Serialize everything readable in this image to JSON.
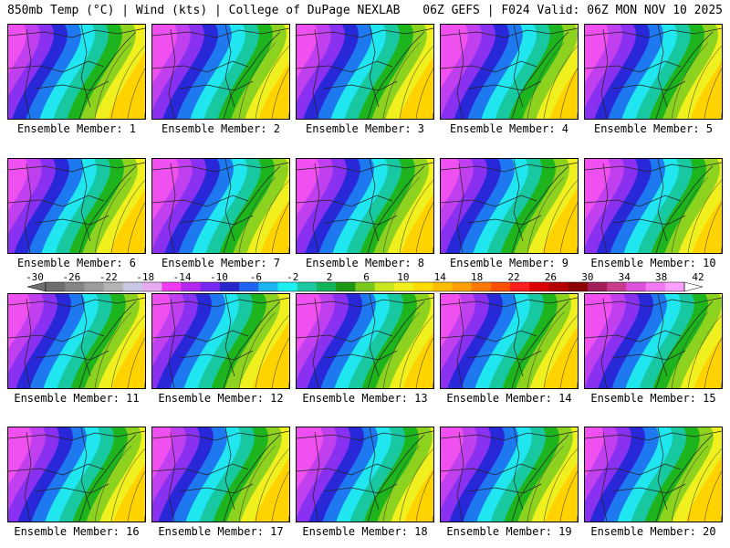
{
  "header": {
    "left": "850mb Temp (°C) | Wind (kts) | College of DuPage NEXLAB",
    "right": "06Z GEFS | F024 Valid: 06Z MON NOV 10 2025"
  },
  "panels": [
    {
      "label": "Ensemble Member: 1"
    },
    {
      "label": "Ensemble Member: 2"
    },
    {
      "label": "Ensemble Member: 3"
    },
    {
      "label": "Ensemble Member: 4"
    },
    {
      "label": "Ensemble Member: 5"
    },
    {
      "label": "Ensemble Member: 6"
    },
    {
      "label": "Ensemble Member: 7"
    },
    {
      "label": "Ensemble Member: 8"
    },
    {
      "label": "Ensemble Member: 9"
    },
    {
      "label": "Ensemble Member: 10"
    },
    {
      "label": "Ensemble Member: 11"
    },
    {
      "label": "Ensemble Member: 12"
    },
    {
      "label": "Ensemble Member: 13"
    },
    {
      "label": "Ensemble Member: 14"
    },
    {
      "label": "Ensemble Member: 15"
    },
    {
      "label": "Ensemble Member: 16"
    },
    {
      "label": "Ensemble Member: 17"
    },
    {
      "label": "Ensemble Member: 18"
    },
    {
      "label": "Ensemble Member: 19"
    },
    {
      "label": "Ensemble Member: 20"
    }
  ],
  "colorbar": {
    "labels": [
      "-30",
      "-26",
      "-22",
      "-18",
      "-14",
      "-10",
      "-6",
      "-2",
      "2",
      "6",
      "10",
      "14",
      "18",
      "22",
      "26",
      "30",
      "34",
      "38",
      "42"
    ],
    "colors": [
      "#6e6e6e",
      "#858585",
      "#9c9c9c",
      "#b4b4b4",
      "#c8c8e6",
      "#e6aaf0",
      "#f03cf0",
      "#b428f0",
      "#7828f0",
      "#2828c8",
      "#1e64f0",
      "#1eb4f0",
      "#1ef0f0",
      "#1ec8a0",
      "#14b45a",
      "#1e9614",
      "#78c81e",
      "#c8e61e",
      "#f0f01e",
      "#ffdc00",
      "#ffbe00",
      "#ffa000",
      "#ff7800",
      "#ff5000",
      "#ff1e1e",
      "#dc0000",
      "#b40000",
      "#8c0000",
      "#a01e5a",
      "#c83c8c",
      "#dc50dc",
      "#f078f0",
      "#ffa0ff"
    ],
    "end_color": "#ffffff"
  },
  "map_colors": {
    "purple_light": "#f050f0",
    "purple": "#c040f0",
    "violet": "#8a30f0",
    "blue": "#2828d8",
    "mid_blue": "#1e78f0",
    "cyan": "#20e6f0",
    "teal": "#18c8a0",
    "green": "#1eb41e",
    "lime": "#8cd21e",
    "yellow": "#f0f01e",
    "gold": "#ffd200"
  }
}
